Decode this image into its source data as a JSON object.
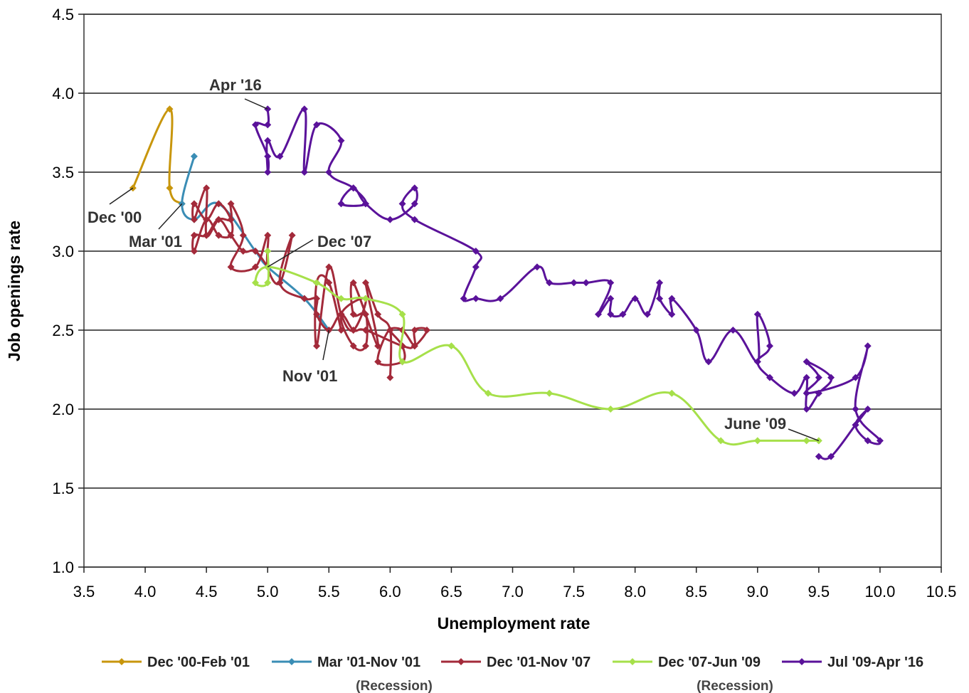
{
  "chart_data": {
    "type": "line",
    "title": "",
    "xlabel": "Unemployment rate",
    "ylabel": "Job openings rate",
    "xlim": [
      3.5,
      10.5
    ],
    "ylim": [
      1.0,
      4.5
    ],
    "x_ticks": [
      "3.5",
      "4.0",
      "4.5",
      "5.0",
      "5.5",
      "6.0",
      "6.5",
      "7.0",
      "7.5",
      "8.0",
      "8.5",
      "9.0",
      "9.5",
      "10.0",
      "10.5"
    ],
    "y_ticks": [
      "1.0",
      "1.5",
      "2.0",
      "2.5",
      "3.0",
      "3.5",
      "4.0",
      "4.5"
    ],
    "grid": "horizontal",
    "legend_position": "bottom",
    "series": [
      {
        "name": "Dec '00-Feb '01",
        "sub": "",
        "color": "#C8960C",
        "points": [
          [
            3.9,
            3.4
          ],
          [
            4.2,
            3.9
          ],
          [
            4.2,
            3.4
          ],
          [
            4.3,
            3.3
          ]
        ]
      },
      {
        "name": "Mar '01-Nov '01",
        "sub": "(Recession)",
        "color": "#3A8DB5",
        "points": [
          [
            4.4,
            3.6
          ],
          [
            4.3,
            3.3
          ],
          [
            4.4,
            3.2
          ],
          [
            4.6,
            3.3
          ],
          [
            4.9,
            3.0
          ],
          [
            5.0,
            2.9
          ],
          [
            5.3,
            2.7
          ],
          [
            5.5,
            2.5
          ]
        ]
      },
      {
        "name": "Dec '01-Nov '07",
        "sub": "",
        "color": "#A32A3A",
        "points": [
          [
            5.6,
            2.5
          ],
          [
            5.5,
            2.8
          ],
          [
            5.4,
            2.8
          ],
          [
            5.4,
            2.4
          ],
          [
            5.5,
            2.9
          ],
          [
            5.6,
            2.6
          ],
          [
            5.7,
            2.5
          ],
          [
            5.8,
            2.7
          ],
          [
            5.6,
            2.6
          ],
          [
            5.7,
            2.4
          ],
          [
            5.8,
            2.4
          ],
          [
            5.8,
            2.6
          ],
          [
            5.7,
            2.6
          ],
          [
            5.7,
            2.8
          ],
          [
            5.9,
            2.4
          ],
          [
            5.8,
            2.8
          ],
          [
            5.9,
            2.6
          ],
          [
            6.0,
            2.5
          ],
          [
            6.0,
            2.2
          ],
          [
            6.0,
            2.5
          ],
          [
            5.9,
            2.3
          ],
          [
            6.1,
            2.3
          ],
          [
            6.1,
            2.4
          ],
          [
            6.0,
            2.5
          ],
          [
            6.1,
            2.5
          ],
          [
            6.2,
            2.4
          ],
          [
            6.2,
            2.5
          ],
          [
            6.3,
            2.5
          ],
          [
            6.2,
            2.4
          ],
          [
            6.1,
            2.4
          ],
          [
            5.8,
            2.5
          ],
          [
            5.7,
            2.5
          ],
          [
            5.6,
            2.6
          ],
          [
            5.5,
            2.5
          ],
          [
            5.4,
            2.6
          ],
          [
            5.4,
            2.7
          ],
          [
            5.3,
            2.7
          ],
          [
            5.1,
            2.8
          ],
          [
            5.2,
            3.1
          ],
          [
            5.1,
            2.8
          ],
          [
            5.0,
            2.9
          ],
          [
            5.0,
            3.1
          ],
          [
            4.9,
            2.9
          ],
          [
            4.7,
            2.9
          ],
          [
            4.8,
            3.1
          ],
          [
            4.7,
            3.3
          ],
          [
            4.7,
            3.2
          ],
          [
            4.6,
            3.2
          ],
          [
            4.5,
            3.1
          ],
          [
            4.5,
            3.4
          ],
          [
            4.4,
            3.2
          ],
          [
            4.4,
            3.3
          ],
          [
            4.5,
            3.2
          ],
          [
            4.6,
            3.3
          ],
          [
            4.7,
            3.2
          ],
          [
            4.7,
            3.1
          ],
          [
            4.6,
            3.1
          ],
          [
            4.5,
            3.2
          ],
          [
            4.4,
            3.0
          ],
          [
            4.4,
            3.1
          ],
          [
            4.5,
            3.1
          ],
          [
            4.6,
            3.2
          ],
          [
            4.7,
            3.1
          ],
          [
            4.8,
            3.0
          ],
          [
            4.9,
            3.0
          ],
          [
            5.0,
            2.9
          ]
        ]
      },
      {
        "name": "Dec '07-Jun '09",
        "sub": "(Recession)",
        "color": "#A6E04A",
        "points": [
          [
            5.0,
            3.0
          ],
          [
            5.0,
            2.8
          ],
          [
            4.9,
            2.8
          ],
          [
            5.0,
            2.9
          ],
          [
            5.4,
            2.8
          ],
          [
            5.6,
            2.7
          ],
          [
            5.8,
            2.7
          ],
          [
            6.1,
            2.6
          ],
          [
            6.1,
            2.3
          ],
          [
            6.5,
            2.4
          ],
          [
            6.8,
            2.1
          ],
          [
            7.3,
            2.1
          ],
          [
            7.8,
            2.0
          ],
          [
            8.3,
            2.1
          ],
          [
            8.7,
            1.8
          ],
          [
            9.0,
            1.8
          ],
          [
            9.4,
            1.8
          ],
          [
            9.5,
            1.8
          ]
        ]
      },
      {
        "name": "Jul '09-Apr '16",
        "sub": "",
        "color": "#5A129A",
        "points": [
          [
            9.5,
            1.7
          ],
          [
            9.6,
            1.7
          ],
          [
            9.8,
            1.9
          ],
          [
            9.9,
            2.0
          ],
          [
            9.8,
            1.9
          ],
          [
            9.9,
            1.8
          ],
          [
            10.0,
            1.8
          ],
          [
            9.8,
            2.0
          ],
          [
            9.9,
            2.4
          ],
          [
            9.8,
            2.2
          ],
          [
            9.4,
            2.1
          ],
          [
            9.5,
            2.2
          ],
          [
            9.4,
            2.3
          ],
          [
            9.6,
            2.2
          ],
          [
            9.5,
            2.1
          ],
          [
            9.4,
            2.0
          ],
          [
            9.4,
            2.2
          ],
          [
            9.3,
            2.1
          ],
          [
            9.1,
            2.2
          ],
          [
            9.0,
            2.3
          ],
          [
            9.1,
            2.4
          ],
          [
            9.0,
            2.6
          ],
          [
            9.0,
            2.3
          ],
          [
            8.8,
            2.5
          ],
          [
            8.6,
            2.3
          ],
          [
            8.5,
            2.5
          ],
          [
            8.3,
            2.7
          ],
          [
            8.3,
            2.6
          ],
          [
            8.2,
            2.7
          ],
          [
            8.2,
            2.8
          ],
          [
            8.1,
            2.6
          ],
          [
            8.0,
            2.7
          ],
          [
            7.9,
            2.6
          ],
          [
            7.8,
            2.6
          ],
          [
            7.8,
            2.7
          ],
          [
            7.7,
            2.6
          ],
          [
            7.8,
            2.8
          ],
          [
            7.6,
            2.8
          ],
          [
            7.5,
            2.8
          ],
          [
            7.3,
            2.8
          ],
          [
            7.2,
            2.9
          ],
          [
            6.9,
            2.7
          ],
          [
            6.7,
            2.7
          ],
          [
            6.6,
            2.7
          ],
          [
            6.7,
            2.9
          ],
          [
            6.7,
            3.0
          ],
          [
            6.2,
            3.2
          ],
          [
            6.1,
            3.3
          ],
          [
            6.2,
            3.4
          ],
          [
            6.2,
            3.3
          ],
          [
            6.0,
            3.2
          ],
          [
            5.8,
            3.3
          ],
          [
            5.7,
            3.4
          ],
          [
            5.6,
            3.3
          ],
          [
            5.8,
            3.3
          ],
          [
            5.7,
            3.4
          ],
          [
            5.5,
            3.5
          ],
          [
            5.6,
            3.7
          ],
          [
            5.4,
            3.8
          ],
          [
            5.3,
            3.5
          ],
          [
            5.3,
            3.9
          ],
          [
            5.1,
            3.6
          ],
          [
            5.0,
            3.7
          ],
          [
            5.0,
            3.5
          ],
          [
            5.0,
            3.6
          ],
          [
            4.9,
            3.8
          ],
          [
            5.0,
            3.8
          ],
          [
            5.0,
            3.9
          ]
        ]
      }
    ],
    "annotations": [
      {
        "text": "Dec '00",
        "x": 3.9,
        "y": 3.4
      },
      {
        "text": "Mar '01",
        "x": 4.3,
        "y": 3.3
      },
      {
        "text": "Dec '07",
        "x": 5.0,
        "y": 2.9
      },
      {
        "text": "Nov '01",
        "x": 5.5,
        "y": 2.5
      },
      {
        "text": "Apr '16",
        "x": 5.0,
        "y": 3.9
      },
      {
        "text": "June '09",
        "x": 9.5,
        "y": 1.8
      }
    ]
  }
}
